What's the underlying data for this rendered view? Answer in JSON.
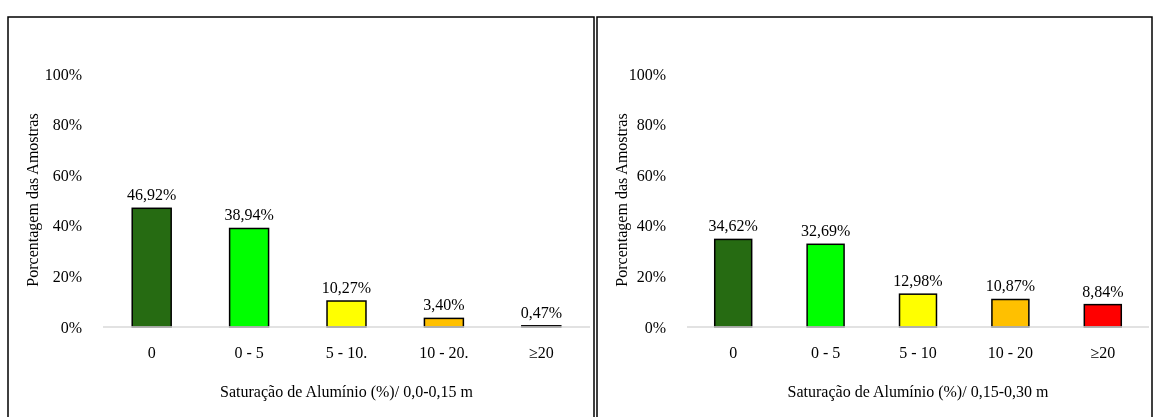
{
  "chart_data": [
    {
      "type": "bar",
      "xlabel": "Saturação de Alumínio (%)/ 0,0-0,15 m",
      "ylabel": "Porcentagem das Amostras",
      "categories": [
        "0",
        "0 - 5",
        "5 - 10.",
        "10 - 20.",
        "≥20"
      ],
      "values": [
        46.92,
        38.94,
        10.27,
        3.4,
        0.47
      ],
      "colors": [
        "#266b12",
        "#00ff00",
        "#ffff00",
        "#ffc000",
        "#ff0000"
      ],
      "value_labels": [
        "46,92%",
        "38,94%",
        "10,27%",
        "3,40%",
        "0,47%"
      ],
      "ylim": [
        0,
        100
      ],
      "yticks": [
        {
          "value": 0,
          "label": "0%"
        },
        {
          "value": 20,
          "label": "20%"
        },
        {
          "value": 40,
          "label": "40%"
        },
        {
          "value": 60,
          "label": "60%"
        },
        {
          "value": 80,
          "label": "80%"
        },
        {
          "value": 100,
          "label": "100%"
        }
      ],
      "grid": false
    },
    {
      "type": "bar",
      "xlabel": "Saturação de Alumínio (%)/ 0,15-0,30 m",
      "ylabel": "Porcentagem das Amostras",
      "categories": [
        "0",
        "0 - 5",
        "5 - 10",
        "10 - 20",
        "≥20"
      ],
      "values": [
        34.62,
        32.69,
        12.98,
        10.87,
        8.84
      ],
      "colors": [
        "#266b12",
        "#00ff00",
        "#ffff00",
        "#ffc000",
        "#ff0000"
      ],
      "value_labels": [
        "34,62%",
        "32,69%",
        "12,98%",
        "10,87%",
        "8,84%"
      ],
      "ylim": [
        0,
        100
      ],
      "yticks": [
        {
          "value": 0,
          "label": "0%"
        },
        {
          "value": 20,
          "label": "20%"
        },
        {
          "value": 40,
          "label": "40%"
        },
        {
          "value": 60,
          "label": "60%"
        },
        {
          "value": 80,
          "label": "80%"
        },
        {
          "value": 100,
          "label": "100%"
        }
      ],
      "grid": false
    }
  ]
}
